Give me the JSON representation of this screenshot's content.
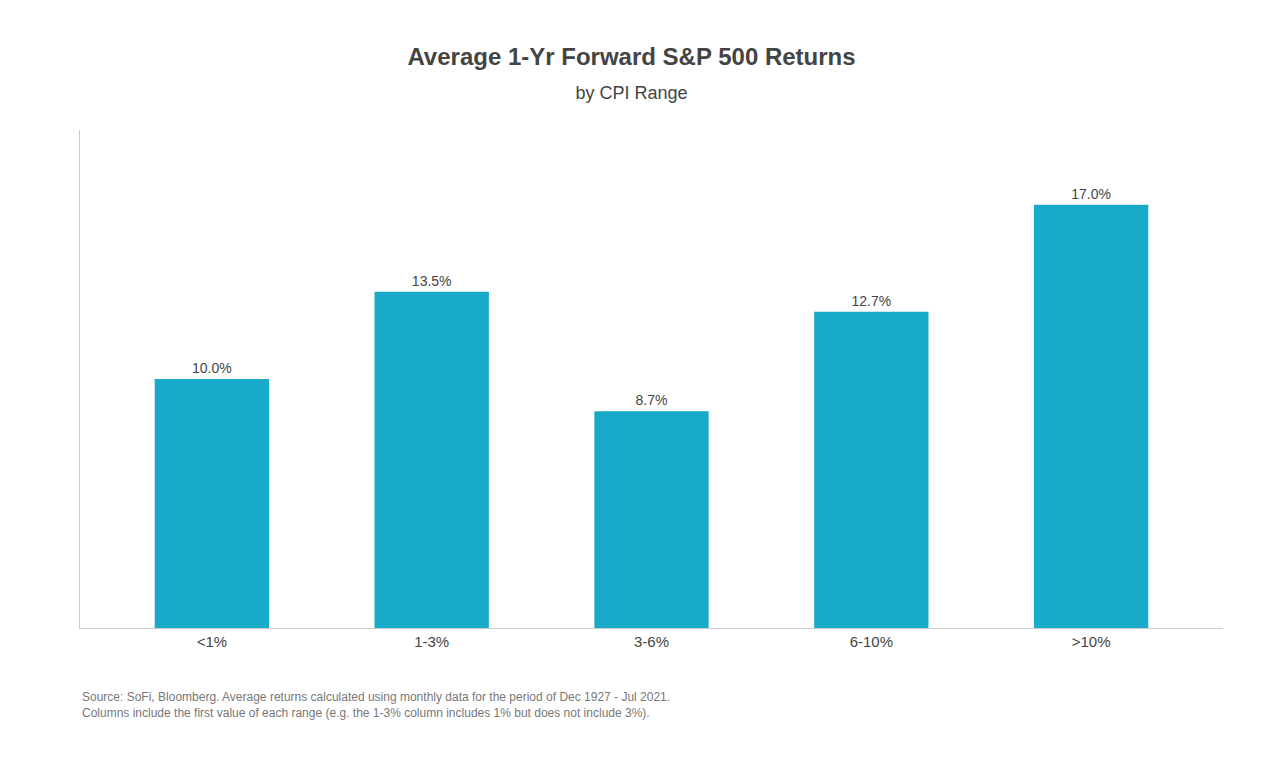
{
  "chart_data": {
    "type": "bar",
    "title": "Average 1-Yr Forward S&P 500 Returns",
    "subtitle": "by CPI Range",
    "categories": [
      "<1%",
      "1-3%",
      "3-6%",
      "6-10%",
      ">10%"
    ],
    "values": [
      10.0,
      13.5,
      8.7,
      12.7,
      17.0
    ],
    "value_labels": [
      "10.0%",
      "13.5%",
      "8.7%",
      "12.7%",
      "17.0%"
    ],
    "data_labels": true,
    "color": "#18aac8",
    "ylim": [
      0,
      20
    ],
    "tick_labels": "x",
    "grid": false,
    "annotations": [
      "Source: SoFi, Bloomberg. Average returns calculated using monthly data for the period of Dec 1927 - Jul 2021.\nColumns include the first value of each range (e.g. the 1-3% column includes 1% but does not include 3%)."
    ]
  }
}
